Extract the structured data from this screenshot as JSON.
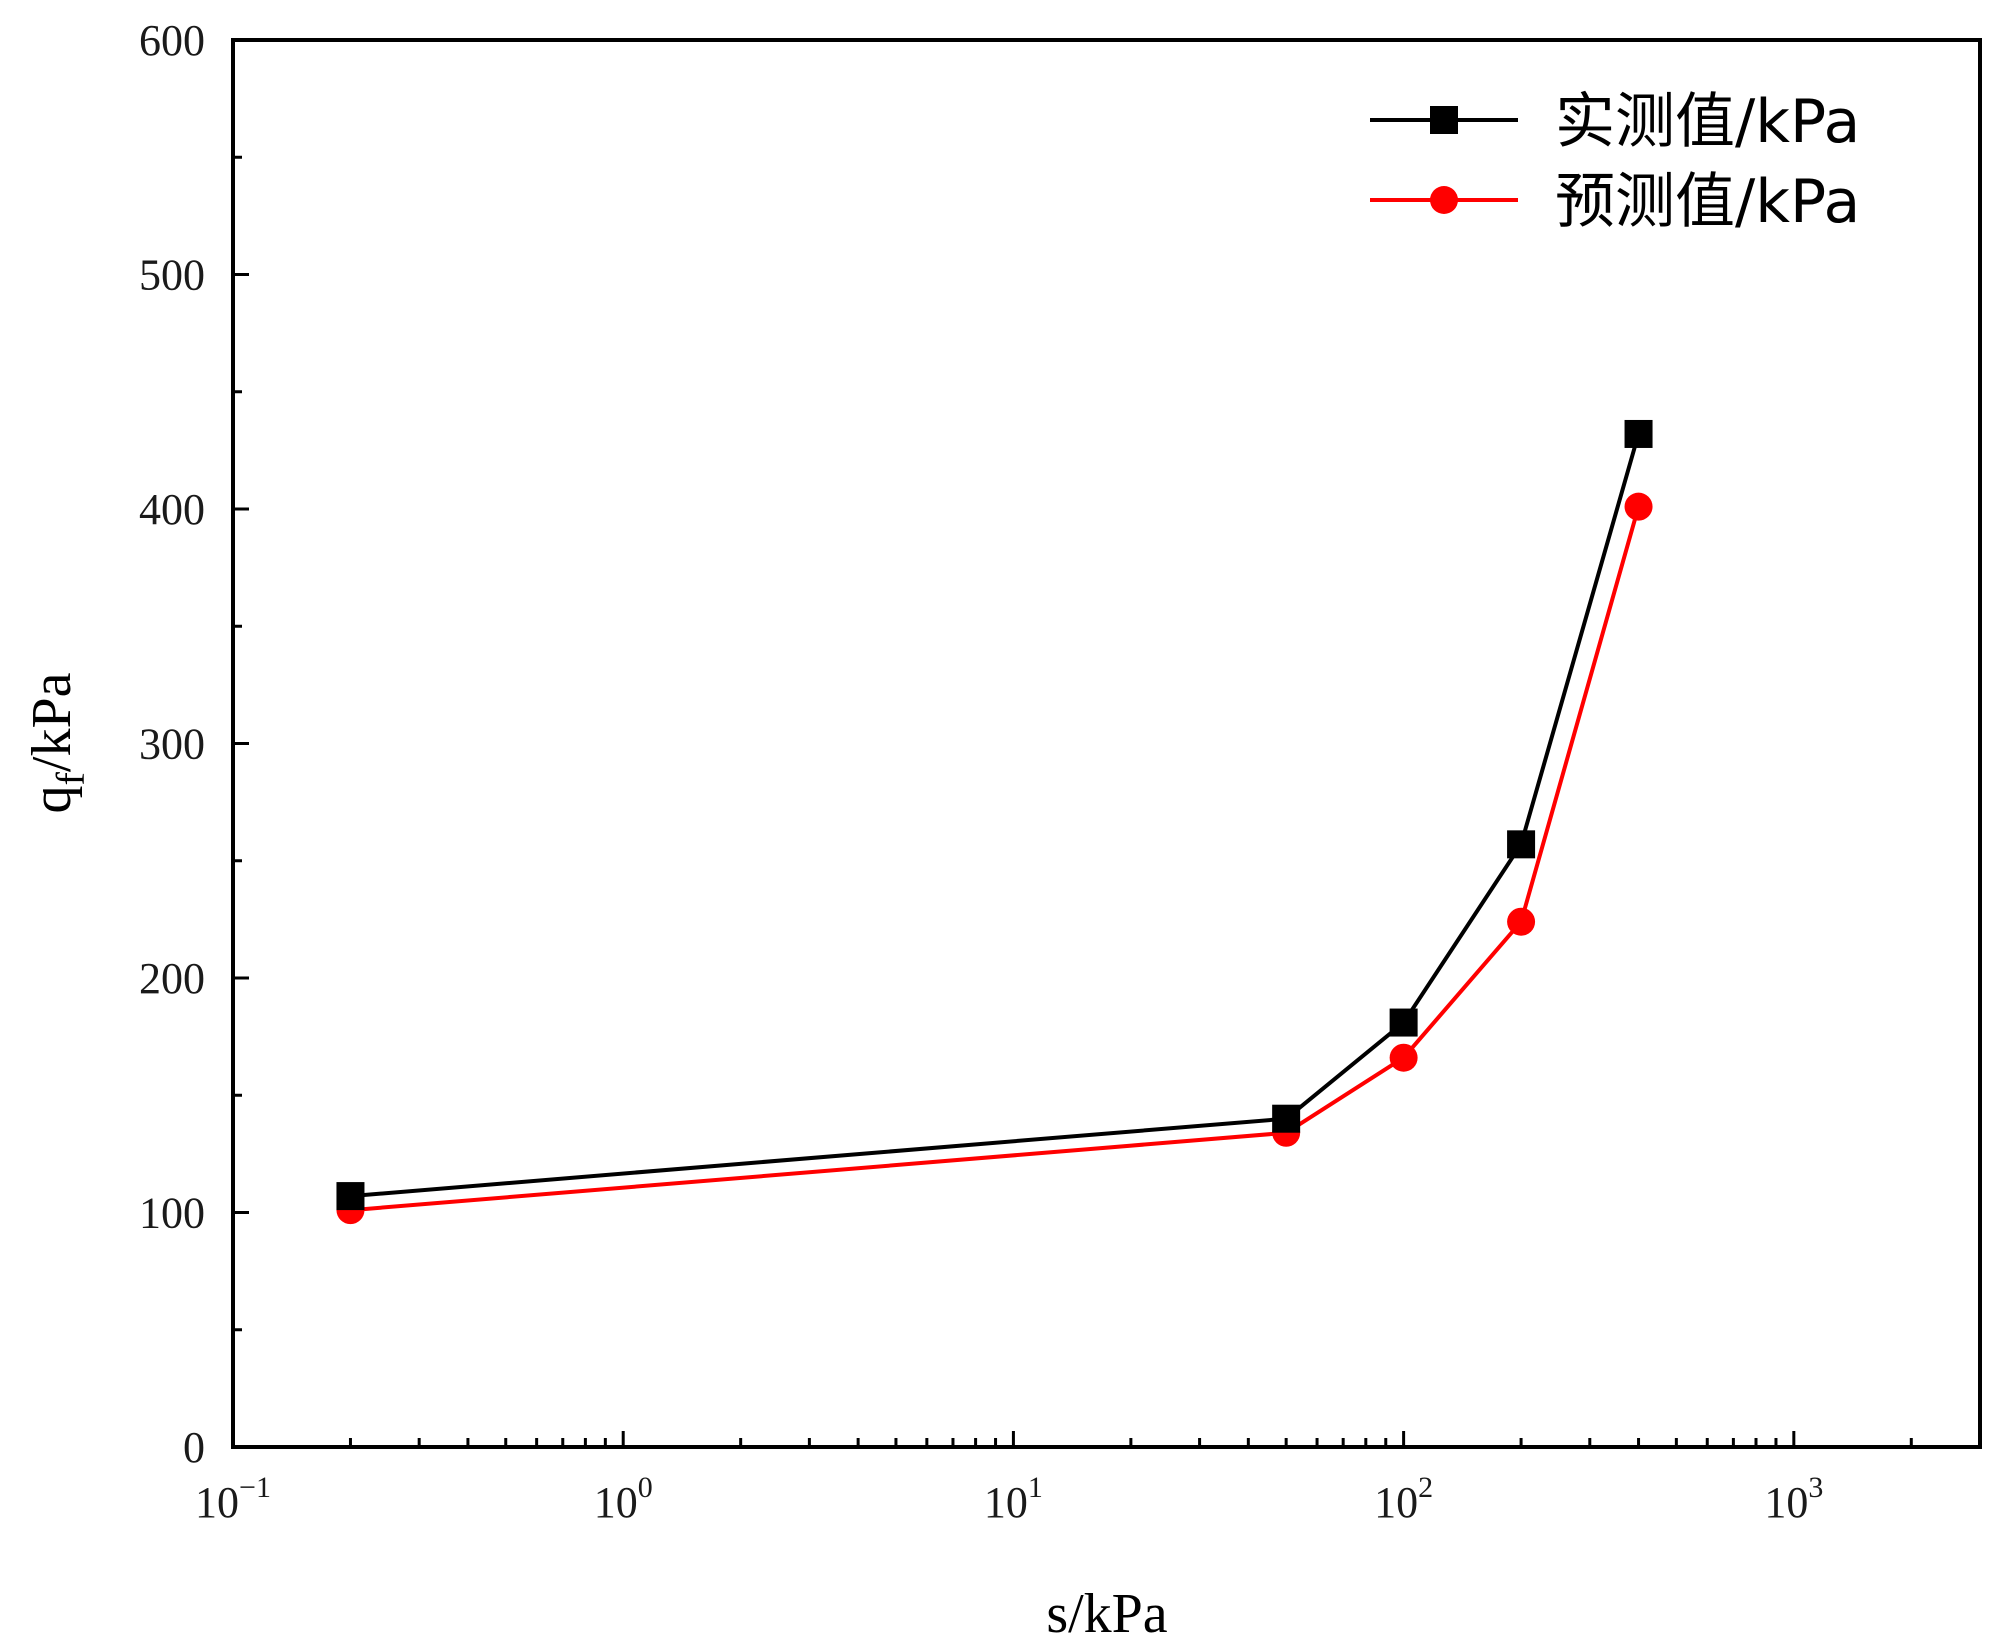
{
  "chart_data": {
    "type": "line",
    "x_scale": "log",
    "xlabel": "s/kPa",
    "ylabel_main": "q",
    "ylabel_sub": "f",
    "ylabel_rest": "/kPa",
    "xlim": [
      0.1,
      3000
    ],
    "ylim": [
      0,
      600
    ],
    "x_ticks": [
      {
        "value": 0.1,
        "base": "10",
        "exp": "−1"
      },
      {
        "value": 1,
        "base": "10",
        "exp": "0"
      },
      {
        "value": 10,
        "base": "10",
        "exp": "1"
      },
      {
        "value": 100,
        "base": "10",
        "exp": "2"
      },
      {
        "value": 1000,
        "base": "10",
        "exp": "3"
      }
    ],
    "y_ticks": [
      {
        "value": 0,
        "label": "0"
      },
      {
        "value": 100,
        "label": "100"
      },
      {
        "value": 200,
        "label": "200"
      },
      {
        "value": 300,
        "label": "300"
      },
      {
        "value": 400,
        "label": "400"
      },
      {
        "value": 500,
        "label": "500"
      },
      {
        "value": 600,
        "label": "600"
      }
    ],
    "legend_position": "top-right",
    "series": [
      {
        "name": "实测值/kPa",
        "color": "#000000",
        "marker": "square",
        "x": [
          0.2,
          50,
          100,
          200,
          400
        ],
        "y": [
          107,
          140,
          181,
          257,
          432
        ]
      },
      {
        "name": "预测值/kPa",
        "color": "#ff0000",
        "marker": "circle",
        "x": [
          0.2,
          50,
          100,
          200,
          400
        ],
        "y": [
          101,
          134,
          166,
          224,
          401
        ]
      }
    ]
  }
}
